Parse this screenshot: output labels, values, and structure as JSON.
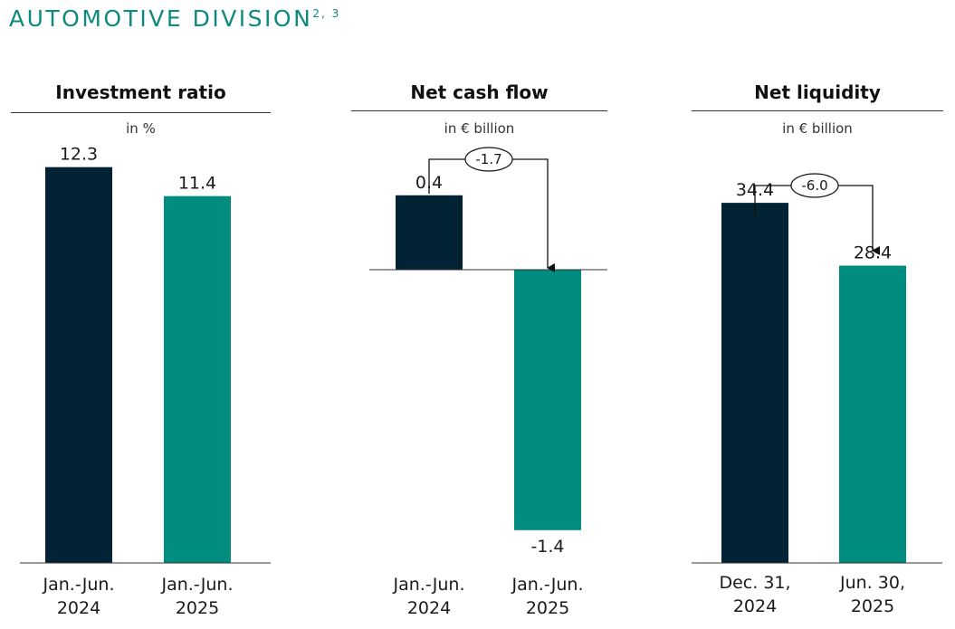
{
  "page": {
    "title": "AUTOMOTIVE DIVISION",
    "title_superscript": "2, 3"
  },
  "colors": {
    "title": "#0e8a7e",
    "series_2024": "#022333",
    "series_2025": "#008c7e"
  },
  "chart_data": [
    {
      "type": "bar",
      "title": "Investment ratio",
      "unit": "in %",
      "categories": [
        [
          "Jan.-Jun.",
          "2024"
        ],
        [
          "Jan.-Jun.",
          "2025"
        ]
      ],
      "values": [
        12.3,
        11.4
      ],
      "value_labels": [
        "12.3",
        "11.4"
      ],
      "ylim": [
        0,
        13.5
      ],
      "bar_colors": [
        "#022333",
        "#008c7e"
      ],
      "grid": false
    },
    {
      "type": "bar",
      "title": "Net cash flow",
      "unit": "in € billion",
      "categories": [
        [
          "Jan.-Jun.",
          "2024"
        ],
        [
          "Jan.-Jun.",
          "2025"
        ]
      ],
      "values": [
        0.4,
        -1.4
      ],
      "value_labels": [
        "0.4",
        "-1.4"
      ],
      "ylim": [
        -1.45,
        0.72
      ],
      "bar_colors": [
        "#022333",
        "#008c7e"
      ],
      "delta": "-1.7",
      "grid": false
    },
    {
      "type": "bar",
      "title": "Net liquidity",
      "unit": "in € billion",
      "categories": [
        [
          "Dec. 31,",
          "2024"
        ],
        [
          "Jun. 30,",
          "2025"
        ]
      ],
      "values": [
        34.4,
        28.4
      ],
      "value_labels": [
        "34.4",
        "28.4"
      ],
      "ylim": [
        0,
        41.5
      ],
      "bar_colors": [
        "#022333",
        "#008c7e"
      ],
      "delta": "-6.0",
      "grid": false
    }
  ]
}
